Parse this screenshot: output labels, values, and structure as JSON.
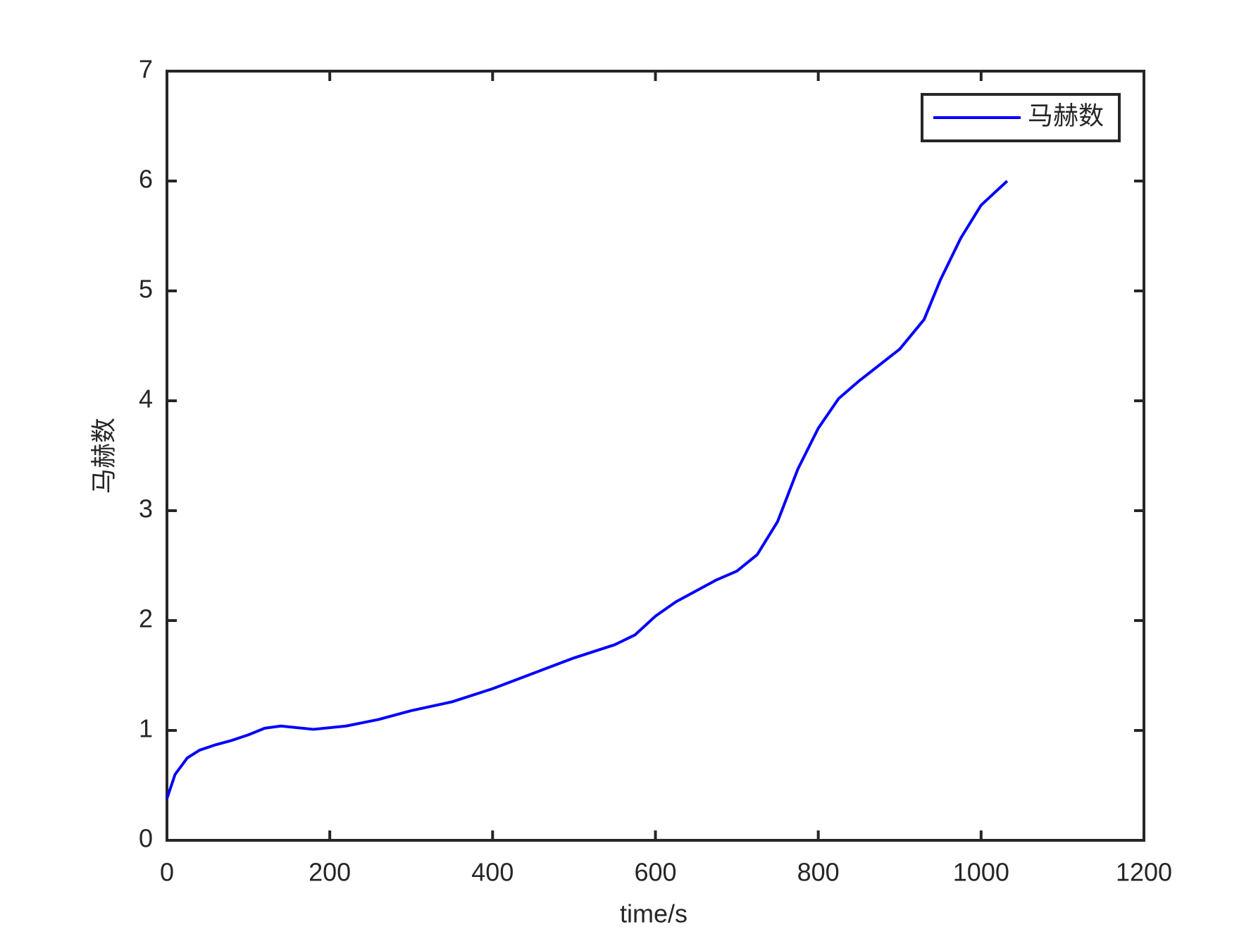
{
  "chart_data": {
    "type": "line",
    "xlabel": "time/s",
    "ylabel": "马赫数",
    "x": [
      0,
      10,
      25,
      40,
      60,
      80,
      100,
      120,
      140,
      180,
      220,
      260,
      300,
      350,
      400,
      450,
      500,
      550,
      575,
      600,
      625,
      650,
      675,
      700,
      725,
      750,
      775,
      800,
      825,
      850,
      900,
      930,
      950,
      975,
      1000,
      1032
    ],
    "series": [
      {
        "name": "马赫数",
        "color": "#0000ff",
        "values": [
          0.38,
          0.6,
          0.75,
          0.82,
          0.87,
          0.91,
          0.96,
          1.02,
          1.04,
          1.01,
          1.04,
          1.1,
          1.18,
          1.26,
          1.38,
          1.52,
          1.66,
          1.78,
          1.87,
          2.04,
          2.17,
          2.27,
          2.37,
          2.45,
          2.6,
          2.9,
          3.38,
          3.75,
          4.02,
          4.18,
          4.47,
          4.74,
          5.1,
          5.48,
          5.78,
          6.0
        ]
      }
    ],
    "xlim": [
      0,
      1200
    ],
    "xticks": [
      0,
      200,
      400,
      600,
      800,
      1000,
      1200
    ],
    "ylim": [
      0,
      7
    ],
    "yticks": [
      0,
      1,
      2,
      3,
      4,
      5,
      6,
      7
    ],
    "grid": false,
    "legend": "upper right"
  }
}
